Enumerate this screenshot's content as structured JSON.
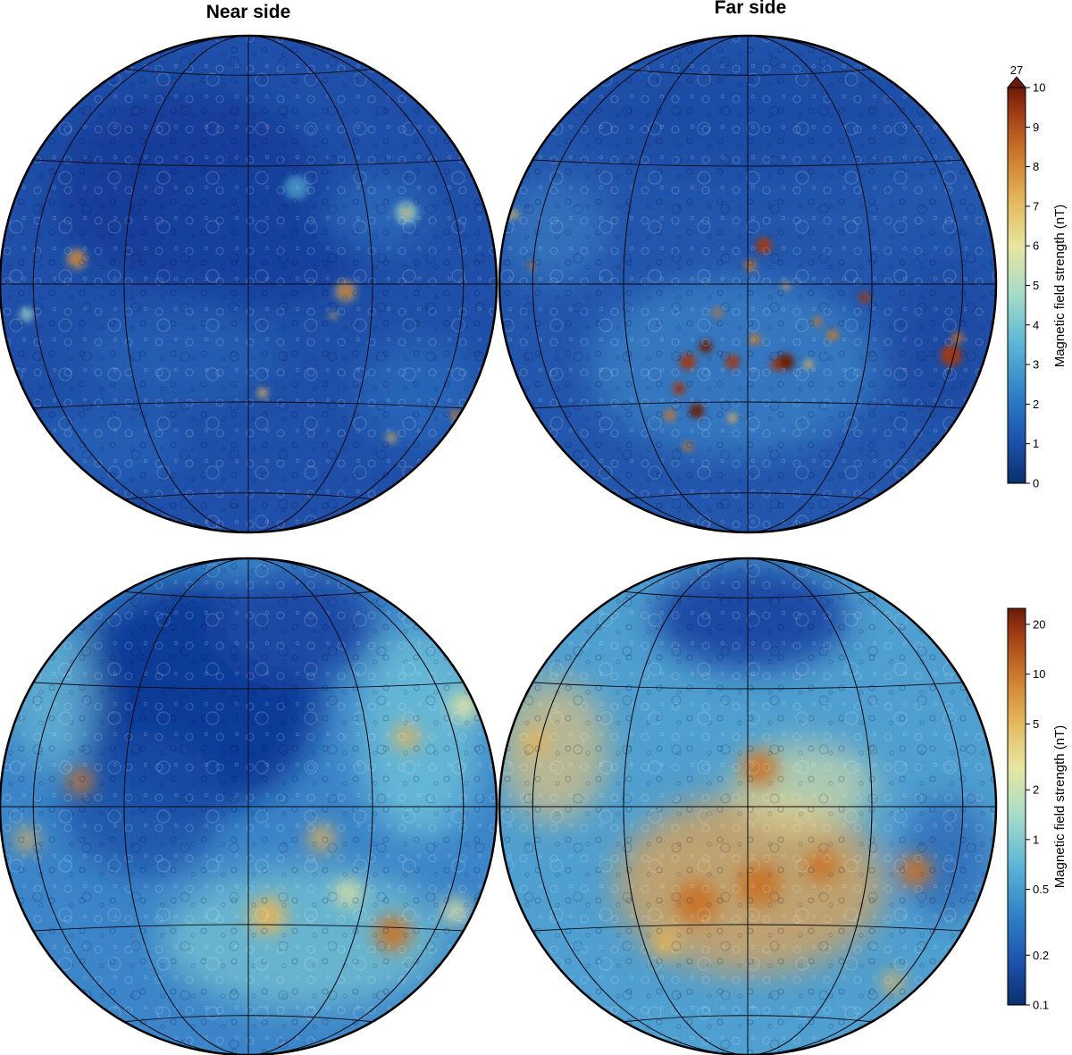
{
  "titles": {
    "near": "Near side",
    "far": "Far side"
  },
  "panels": [
    {
      "id": "top-near",
      "side": "near",
      "scale": "linear"
    },
    {
      "id": "top-far",
      "side": "far",
      "scale": "linear"
    },
    {
      "id": "bottom-near",
      "side": "near",
      "scale": "log"
    },
    {
      "id": "bottom-far",
      "side": "far",
      "scale": "log"
    }
  ],
  "colorbar_linear": {
    "label": "Magnetic field strength (nT)",
    "min": 0,
    "max": 10,
    "ticks": [
      "0",
      "1",
      "2",
      "3",
      "4",
      "5",
      "6",
      "7",
      "8",
      "9",
      "10"
    ],
    "overflow_label": "27"
  },
  "colorbar_log": {
    "label": "Magnetic field strength (nT)",
    "min": 0.1,
    "max": 25,
    "ticks": [
      "0.1",
      "0.2",
      "0.5",
      "1",
      "2",
      "5",
      "10",
      "20"
    ]
  },
  "colors": {
    "ramp": [
      "#08306b",
      "#1c4fa8",
      "#2f7ec4",
      "#5bb5d6",
      "#a8dcc8",
      "#e8e6a0",
      "#e3b459",
      "#c8742b",
      "#9c3a14",
      "#6b1a06"
    ],
    "ocean": "#1f4fa8",
    "mare": "#123c9a",
    "graticule": "#0a0a14"
  }
}
